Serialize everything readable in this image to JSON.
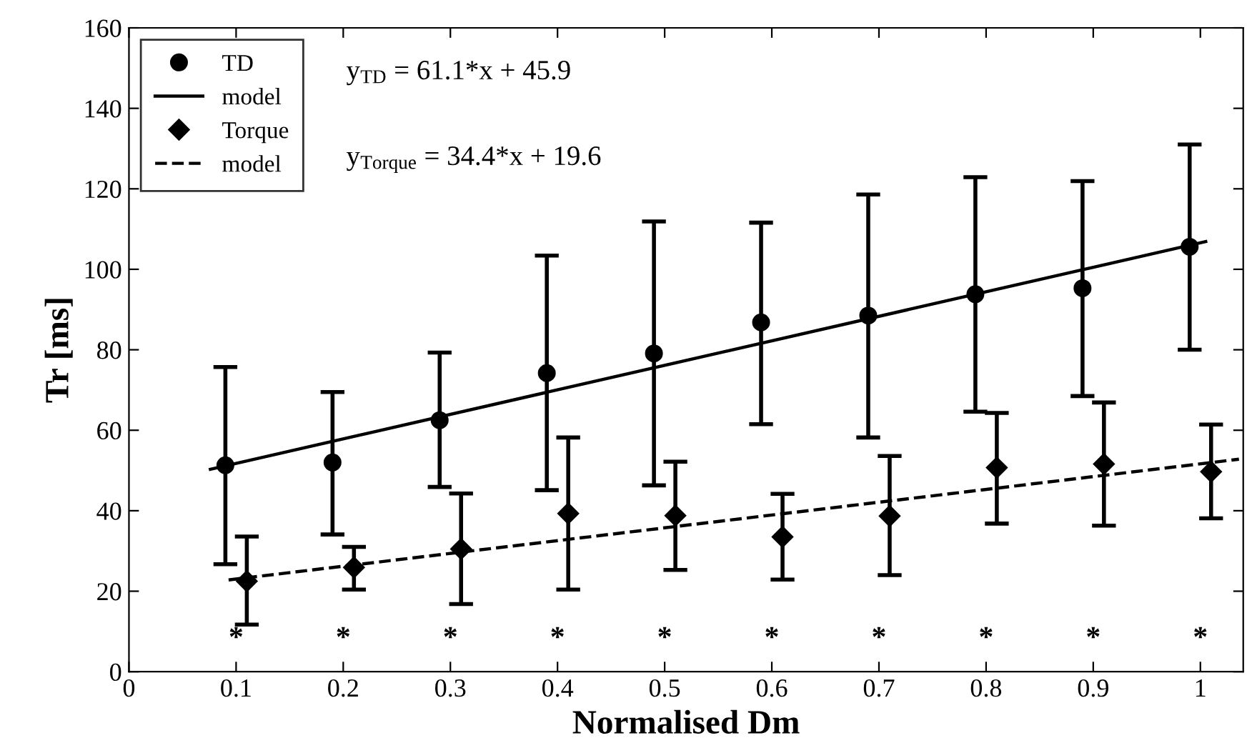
{
  "chart_data": {
    "type": "scatter",
    "xlabel": "Normalised Dm",
    "ylabel": "Tr [ms]",
    "xlim": [
      0,
      1.04
    ],
    "xticks": [
      0,
      0.1,
      0.2,
      0.3,
      0.4,
      0.5,
      0.6,
      0.7,
      0.8,
      0.9,
      1
    ],
    "ylim": [
      0,
      160
    ],
    "yticks": [
      0,
      20,
      40,
      60,
      80,
      100,
      120,
      140,
      160
    ],
    "grid": false,
    "legend": "top left",
    "series": [
      {
        "name": "TD",
        "marker": "circle",
        "color": "#000000",
        "x": [
          0.09,
          0.19,
          0.29,
          0.39,
          0.49,
          0.59,
          0.69,
          0.79,
          0.89,
          0.99
        ],
        "values": [
          51.3,
          52.0,
          62.5,
          74.2,
          79.1,
          86.8,
          88.5,
          93.8,
          95.3,
          105.6
        ],
        "errors": [
          [
            26.7,
            75.7
          ],
          [
            34.1,
            69.5
          ],
          [
            45.9,
            79.3
          ],
          [
            45.1,
            103.4
          ],
          [
            46.3,
            111.9
          ],
          [
            61.5,
            111.6
          ],
          [
            58.2,
            118.6
          ],
          [
            64.6,
            122.9
          ],
          [
            68.5,
            121.9
          ],
          [
            80.0,
            131.0
          ]
        ]
      },
      {
        "name": "model",
        "type": "line",
        "line_style": "solid",
        "color": "#000000",
        "x": [
          0.076,
          1.005
        ],
        "values": [
          50.3,
          106.9
        ]
      },
      {
        "name": "Torque",
        "marker": "diamond",
        "color": "#000000",
        "x": [
          0.11,
          0.21,
          0.31,
          0.41,
          0.51,
          0.61,
          0.71,
          0.81,
          0.91,
          1.01
        ],
        "values": [
          22.5,
          25.9,
          30.5,
          39.3,
          38.8,
          33.5,
          38.7,
          50.7,
          51.6,
          49.7
        ],
        "errors": [
          [
            11.7,
            33.6
          ],
          [
            20.4,
            31.0
          ],
          [
            16.8,
            44.3
          ],
          [
            20.4,
            58.2
          ],
          [
            25.3,
            52.2
          ],
          [
            22.9,
            44.2
          ],
          [
            24.0,
            53.6
          ],
          [
            36.8,
            64.3
          ],
          [
            36.3,
            66.9
          ],
          [
            38.1,
            61.4
          ]
        ]
      },
      {
        "name": "model",
        "type": "line",
        "line_style": "dashed",
        "color": "#000000",
        "x": [
          0.093,
          1.036
        ],
        "values": [
          22.8,
          52.8
        ]
      }
    ],
    "annotations": [
      "y$_{TD}$ = 61.1*x + 45.9",
      "y$_{Torque}$ = 34.4*x + 19.6",
      "*",
      "*",
      "*",
      "*",
      "*",
      "*",
      "*",
      "*",
      "*",
      "*"
    ]
  }
}
